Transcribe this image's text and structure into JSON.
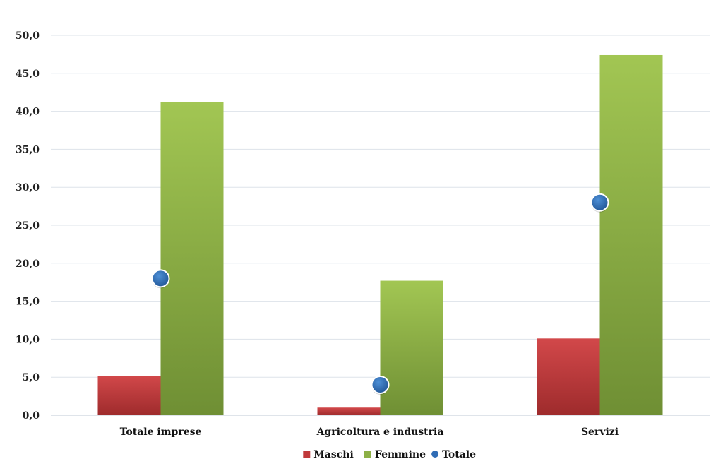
{
  "chart_data": {
    "type": "bar",
    "title": "",
    "xlabel": "",
    "ylabel": "",
    "ylim": [
      0,
      50
    ],
    "y_ticks": [
      "0,0",
      "5,0",
      "10,0",
      "15,0",
      "20,0",
      "25,0",
      "30,0",
      "35,0",
      "40,0",
      "45,0",
      "50,0"
    ],
    "categories": [
      "Totale imprese",
      "Agricoltura e industria",
      "Servizi"
    ],
    "series": [
      {
        "name": "Maschi",
        "kind": "bar",
        "color": "#c0393b",
        "values": [
          5.2,
          1.0,
          10.1
        ]
      },
      {
        "name": "Femmine",
        "kind": "bar",
        "color": "#8db046",
        "values": [
          41.2,
          17.7,
          47.4
        ]
      },
      {
        "name": "Totale",
        "kind": "marker",
        "color": "#2f6cb5",
        "values": [
          18.0,
          4.0,
          28.0
        ]
      }
    ],
    "grid": true,
    "legend_position": "bottom"
  }
}
